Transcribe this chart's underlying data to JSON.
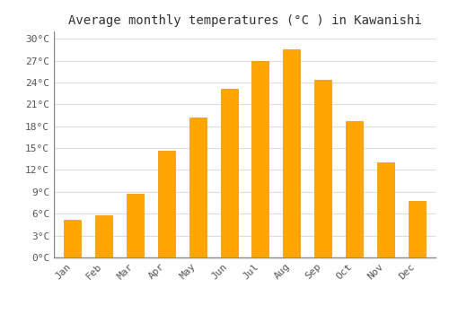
{
  "title": "Average monthly temperatures (°C ) in Kawanishi",
  "months": [
    "Jan",
    "Feb",
    "Mar",
    "Apr",
    "May",
    "Jun",
    "Jul",
    "Aug",
    "Sep",
    "Oct",
    "Nov",
    "Dec"
  ],
  "values": [
    5.2,
    5.8,
    8.7,
    14.7,
    19.2,
    23.1,
    26.9,
    28.5,
    24.3,
    18.7,
    13.0,
    7.8
  ],
  "bar_color_top": "#FFB830",
  "bar_color_bottom": "#FFA500",
  "bar_edge_color": "#E8960A",
  "ylim": [
    0,
    31
  ],
  "yticks": [
    0,
    3,
    6,
    9,
    12,
    15,
    18,
    21,
    24,
    27,
    30
  ],
  "ytick_labels": [
    "0°C",
    "3°C",
    "6°C",
    "9°C",
    "12°C",
    "15°C",
    "18°C",
    "21°C",
    "24°C",
    "27°C",
    "30°C"
  ],
  "background_color": "#ffffff",
  "grid_color": "#dddddd",
  "title_fontsize": 10,
  "tick_fontsize": 8,
  "bar_width": 0.55
}
